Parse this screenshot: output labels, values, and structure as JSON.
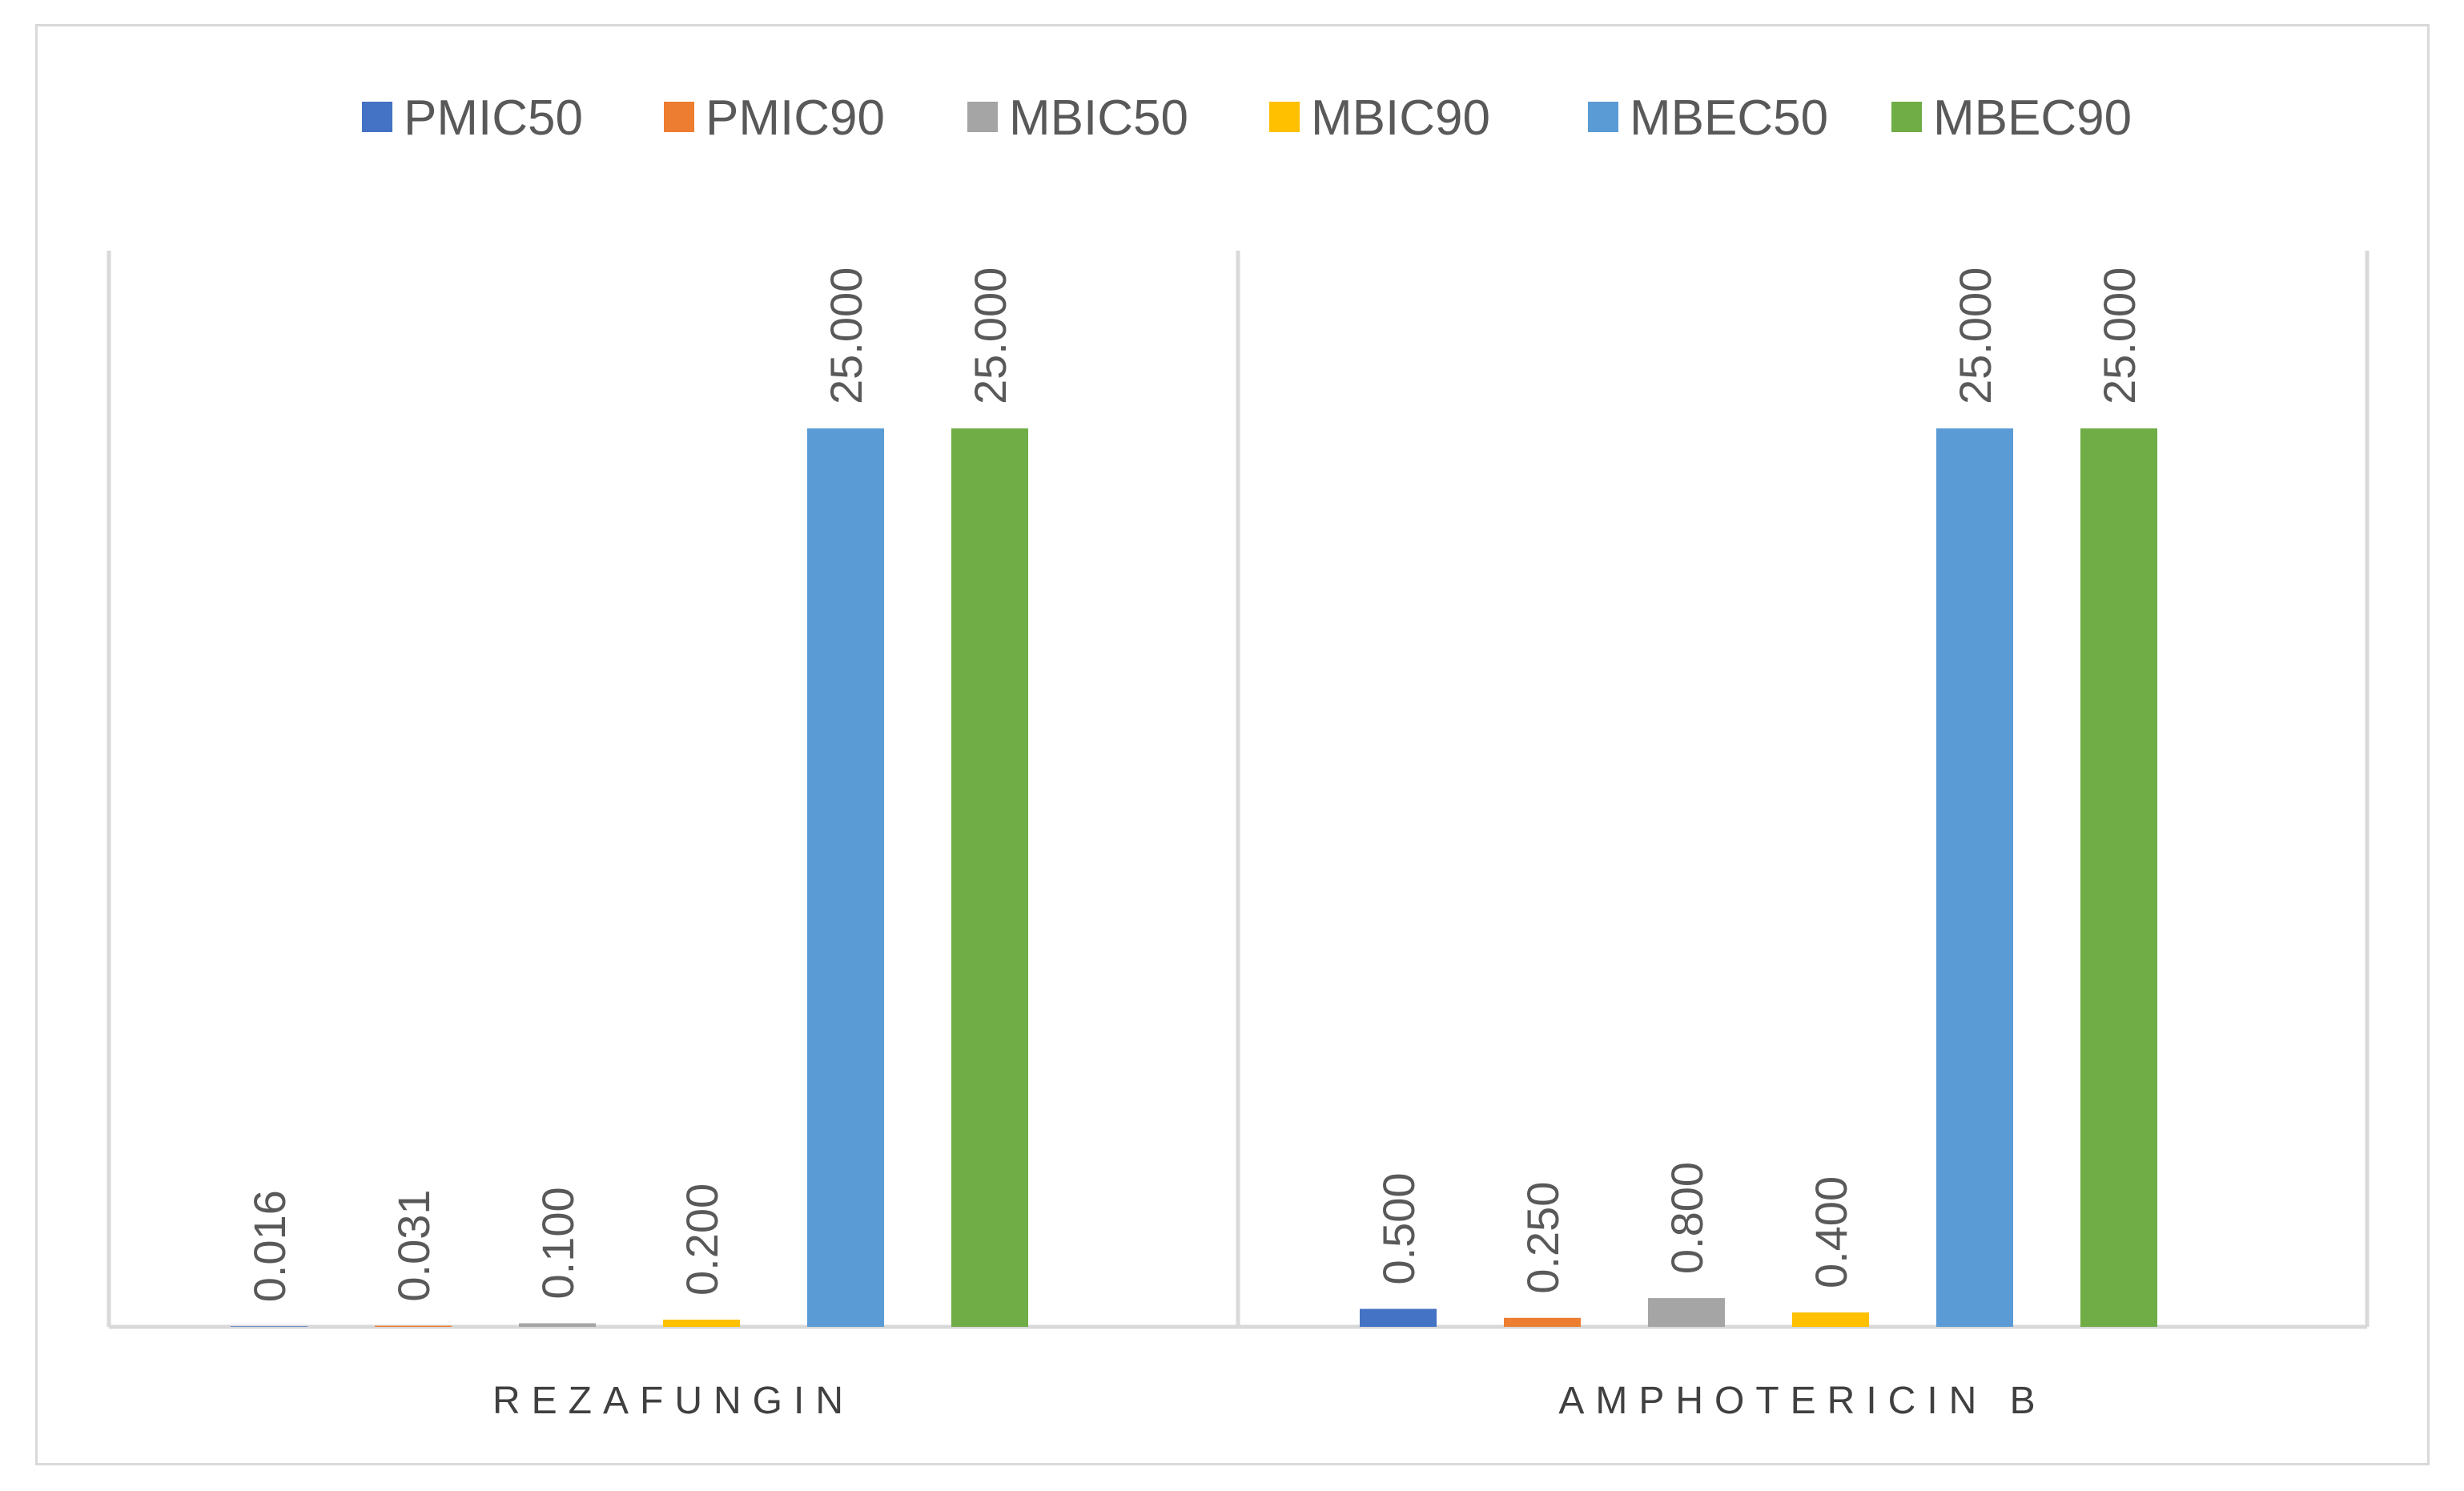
{
  "chart_data": {
    "type": "bar",
    "title": "",
    "xlabel": "",
    "ylabel": "",
    "categories": [
      "REZAFUNGIN",
      "AMPHOTERICIN B"
    ],
    "series": [
      {
        "name": "PMIC50",
        "color": "#4472C4",
        "values": [
          0.016,
          0.5
        ],
        "labels": [
          "0.016",
          "0.500"
        ]
      },
      {
        "name": "PMIC90",
        "color": "#ED7D31",
        "values": [
          0.031,
          0.25
        ],
        "labels": [
          "0.031",
          "0.250"
        ]
      },
      {
        "name": "MBIC50",
        "color": "#A5A5A5",
        "values": [
          0.1,
          0.8
        ],
        "labels": [
          "0.100",
          "0.800"
        ]
      },
      {
        "name": "MBIC90",
        "color": "#FFC000",
        "values": [
          0.2,
          0.4
        ],
        "labels": [
          "0.200",
          "0.400"
        ]
      },
      {
        "name": "MBEC50",
        "color": "#5B9BD5",
        "values": [
          25,
          25
        ],
        "labels": [
          "25.000",
          "25.000"
        ]
      },
      {
        "name": "MBEC90",
        "color": "#70AD47",
        "values": [
          25,
          25
        ],
        "labels": [
          "25.000",
          "25.000"
        ]
      }
    ],
    "ylim": [
      0,
      31
    ],
    "grid": false,
    "legend_position": "top-center",
    "axis_color": "#d9d9d9"
  }
}
